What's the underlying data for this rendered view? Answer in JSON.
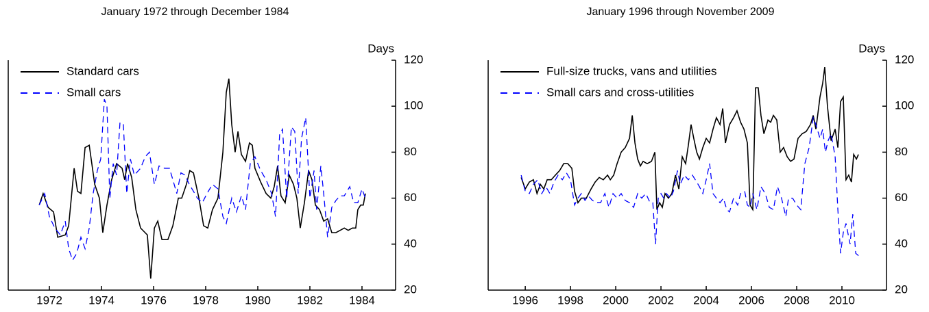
{
  "chart_data": [
    {
      "type": "line",
      "title": "January 1972 through December 1984",
      "y_label": "Days",
      "xlim": [
        1970.42,
        1985.29
      ],
      "ylim": [
        20,
        120
      ],
      "xticks": [
        1972,
        1974,
        1976,
        1978,
        1980,
        1982,
        1984
      ],
      "yticks": [
        20,
        40,
        60,
        80,
        100,
        120
      ],
      "grid": false,
      "legend": "upper left",
      "series": [
        {
          "name": "Standard cars",
          "color": "#000000",
          "line_style": "solid",
          "x": [
            1971.61,
            1971.76,
            1971.95,
            1972.16,
            1972.32,
            1972.61,
            1972.74,
            1972.95,
            1973.08,
            1973.21,
            1973.37,
            1973.53,
            1973.74,
            1973.92,
            1974.05,
            1974.21,
            1974.39,
            1974.58,
            1974.79,
            1974.89,
            1975.0,
            1975.16,
            1975.32,
            1975.5,
            1975.76,
            1975.89,
            1976.03,
            1976.16,
            1976.32,
            1976.55,
            1976.74,
            1976.95,
            1977.08,
            1977.26,
            1977.39,
            1977.53,
            1977.74,
            1977.92,
            1978.08,
            1978.26,
            1978.47,
            1978.66,
            1978.79,
            1978.89,
            1979.0,
            1979.13,
            1979.24,
            1979.37,
            1979.53,
            1979.68,
            1979.79,
            1979.89,
            1980.11,
            1980.32,
            1980.5,
            1980.63,
            1980.76,
            1980.89,
            1981.05,
            1981.21,
            1981.37,
            1981.5,
            1981.63,
            1981.79,
            1981.95,
            1982.08,
            1982.21,
            1982.37,
            1982.53,
            1982.68,
            1982.84,
            1983.0,
            1983.16,
            1983.32,
            1983.47,
            1983.63,
            1983.76,
            1983.84,
            1983.95,
            1984.05,
            1984.13
          ],
          "values": [
            57,
            62,
            56,
            54,
            43,
            44,
            48,
            73,
            63,
            62,
            82,
            83,
            66,
            60,
            45,
            57,
            68,
            75,
            73,
            68,
            75,
            69,
            55,
            47,
            44,
            25,
            47,
            50,
            42,
            42,
            48,
            60,
            60,
            66,
            72,
            71,
            60,
            48,
            47,
            55,
            60,
            80,
            106,
            112,
            92,
            80,
            89,
            79,
            76,
            84,
            83,
            73,
            67,
            62,
            60,
            65,
            74,
            61,
            58,
            70,
            66,
            60,
            47,
            58,
            72,
            68,
            57,
            55,
            50,
            51,
            45,
            45,
            46,
            47,
            46,
            47,
            47,
            55,
            57,
            57,
            62
          ]
        },
        {
          "name": "Small cars",
          "color": "#0000ff",
          "line_style": "dashed",
          "x": [
            1971.61,
            1971.82,
            1972.0,
            1972.21,
            1972.42,
            1972.61,
            1972.74,
            1972.89,
            1973.05,
            1973.21,
            1973.37,
            1973.53,
            1973.68,
            1973.84,
            1973.97,
            1974.11,
            1974.21,
            1974.32,
            1974.45,
            1974.58,
            1974.71,
            1974.84,
            1974.97,
            1975.11,
            1975.26,
            1975.5,
            1975.68,
            1975.84,
            1976.03,
            1976.21,
            1976.42,
            1976.61,
            1976.74,
            1976.89,
            1977.05,
            1977.21,
            1977.37,
            1977.53,
            1977.68,
            1977.87,
            1978.05,
            1978.26,
            1978.47,
            1978.66,
            1978.79,
            1979.0,
            1979.18,
            1979.37,
            1979.53,
            1979.71,
            1979.89,
            1980.11,
            1980.32,
            1980.53,
            1980.68,
            1980.84,
            1980.95,
            1981.11,
            1981.29,
            1981.42,
            1981.55,
            1981.68,
            1981.84,
            1982.0,
            1982.16,
            1982.26,
            1982.42,
            1982.53,
            1982.68,
            1982.84,
            1983.0,
            1983.16,
            1983.32,
            1983.53,
            1983.68,
            1983.84,
            1984.0,
            1984.13
          ],
          "values": [
            57,
            62,
            52,
            47,
            44,
            50,
            38,
            33,
            36,
            43,
            38,
            47,
            62,
            72,
            77,
            103,
            100,
            60,
            75,
            70,
            93,
            92,
            62,
            77,
            70,
            73,
            78,
            80,
            66,
            74,
            73,
            73,
            68,
            62,
            71,
            70,
            66,
            63,
            60,
            58,
            62,
            66,
            64,
            52,
            49,
            60,
            54,
            61,
            55,
            75,
            78,
            72,
            68,
            62,
            52,
            88,
            90,
            60,
            91,
            89,
            62,
            86,
            95,
            60,
            72,
            55,
            74,
            62,
            43,
            56,
            59,
            61,
            61,
            65,
            58,
            58,
            64,
            60
          ]
        }
      ]
    },
    {
      "type": "line",
      "title": "January 1996 through November 2009",
      "y_label": "Days",
      "xlim": [
        1994.36,
        2011.97
      ],
      "ylim": [
        20,
        120
      ],
      "xticks": [
        1996,
        1998,
        2000,
        2002,
        2004,
        2006,
        2008,
        2010
      ],
      "yticks": [
        20,
        40,
        60,
        80,
        100,
        120
      ],
      "grid": false,
      "legend": "upper left",
      "series": [
        {
          "name": "Full-size trucks, vans and utilities",
          "color": "#000000",
          "line_style": "solid",
          "x": [
            1995.82,
            1996.0,
            1996.18,
            1996.36,
            1996.52,
            1996.67,
            1996.82,
            1996.97,
            1997.15,
            1997.33,
            1997.52,
            1997.7,
            1997.88,
            1998.06,
            1998.18,
            1998.33,
            1998.48,
            1998.7,
            1998.91,
            1999.09,
            1999.27,
            1999.45,
            1999.64,
            1999.76,
            1999.91,
            2000.06,
            2000.24,
            2000.42,
            2000.61,
            2000.73,
            2000.85,
            2000.97,
            2001.09,
            2001.21,
            2001.39,
            2001.58,
            2001.73,
            2001.82,
            2001.94,
            2002.06,
            2002.18,
            2002.33,
            2002.48,
            2002.64,
            2002.79,
            2002.94,
            2003.09,
            2003.21,
            2003.33,
            2003.45,
            2003.58,
            2003.7,
            2003.85,
            2004.0,
            2004.15,
            2004.3,
            2004.45,
            2004.61,
            2004.73,
            2004.85,
            2005.03,
            2005.21,
            2005.36,
            2005.52,
            2005.67,
            2005.82,
            2005.94,
            2006.06,
            2006.18,
            2006.3,
            2006.42,
            2006.55,
            2006.73,
            2006.85,
            2006.97,
            2007.12,
            2007.27,
            2007.42,
            2007.58,
            2007.73,
            2007.88,
            2008.06,
            2008.24,
            2008.42,
            2008.61,
            2008.73,
            2008.85,
            2009.03,
            2009.15,
            2009.24,
            2009.36,
            2009.52,
            2009.7,
            2009.82,
            2009.94,
            2010.06,
            2010.18,
            2010.3,
            2010.42,
            2010.52,
            2010.64,
            2010.73
          ],
          "values": [
            69,
            64,
            67,
            68,
            62,
            66,
            64,
            68,
            68,
            70,
            72,
            75,
            75,
            73,
            63,
            58,
            60,
            60,
            64,
            67,
            69,
            68,
            70,
            68,
            70,
            75,
            80,
            82,
            86,
            96,
            84,
            77,
            74,
            76,
            75,
            76,
            80,
            55,
            58,
            56,
            62,
            60,
            62,
            70,
            64,
            78,
            75,
            83,
            92,
            86,
            80,
            77,
            82,
            86,
            84,
            90,
            95,
            92,
            99,
            84,
            92,
            95,
            98,
            93,
            90,
            84,
            57,
            55,
            108,
            108,
            96,
            88,
            94,
            93,
            96,
            94,
            80,
            82,
            78,
            76,
            77,
            86,
            88,
            89,
            92,
            96,
            90,
            104,
            110,
            117,
            100,
            85,
            90,
            82,
            102,
            104,
            68,
            70,
            67,
            79,
            77,
            79
          ]
        },
        {
          "name": "Small cars and cross-utilities",
          "color": "#0000ff",
          "line_style": "dashed",
          "x": [
            1995.82,
            1996.0,
            1996.18,
            1996.36,
            1996.55,
            1996.73,
            1996.91,
            1997.09,
            1997.27,
            1997.45,
            1997.64,
            1997.82,
            1998.0,
            1998.18,
            1998.33,
            1998.48,
            1998.64,
            1998.79,
            1998.97,
            1999.15,
            1999.33,
            1999.52,
            1999.7,
            1999.88,
            2000.06,
            2000.24,
            2000.42,
            2000.61,
            2000.79,
            2000.97,
            2001.15,
            2001.33,
            2001.52,
            2001.64,
            2001.76,
            2001.88,
            2002.0,
            2002.12,
            2002.24,
            2002.42,
            2002.55,
            2002.73,
            2002.85,
            2003.03,
            2003.21,
            2003.39,
            2003.58,
            2003.7,
            2003.85,
            2004.0,
            2004.15,
            2004.3,
            2004.45,
            2004.61,
            2004.76,
            2004.91,
            2005.03,
            2005.21,
            2005.39,
            2005.52,
            2005.7,
            2005.82,
            2005.94,
            2006.06,
            2006.24,
            2006.42,
            2006.61,
            2006.79,
            2006.97,
            2007.15,
            2007.33,
            2007.52,
            2007.64,
            2007.82,
            2008.0,
            2008.18,
            2008.36,
            2008.55,
            2008.73,
            2008.85,
            2009.03,
            2009.15,
            2009.27,
            2009.39,
            2009.52,
            2009.7,
            2009.82,
            2009.94,
            2010.06,
            2010.18,
            2010.36,
            2010.48,
            2010.61,
            2010.73
          ],
          "values": [
            70,
            63,
            62,
            66,
            68,
            62,
            65,
            62,
            67,
            70,
            68,
            71,
            68,
            57,
            60,
            62,
            59,
            61,
            59,
            58,
            58,
            62,
            56,
            62,
            60,
            62,
            59,
            58,
            56,
            62,
            60,
            62,
            58,
            58,
            40,
            60,
            62,
            60,
            62,
            60,
            63,
            72,
            66,
            70,
            68,
            70,
            67,
            65,
            62,
            68,
            75,
            62,
            60,
            58,
            60,
            55,
            54,
            60,
            57,
            62,
            63,
            57,
            56,
            62,
            55,
            65,
            62,
            56,
            55,
            65,
            60,
            52,
            60,
            60,
            57,
            55,
            75,
            82,
            95,
            92,
            86,
            90,
            80,
            85,
            88,
            78,
            55,
            36,
            45,
            49,
            40,
            53,
            36,
            35
          ]
        }
      ]
    }
  ]
}
